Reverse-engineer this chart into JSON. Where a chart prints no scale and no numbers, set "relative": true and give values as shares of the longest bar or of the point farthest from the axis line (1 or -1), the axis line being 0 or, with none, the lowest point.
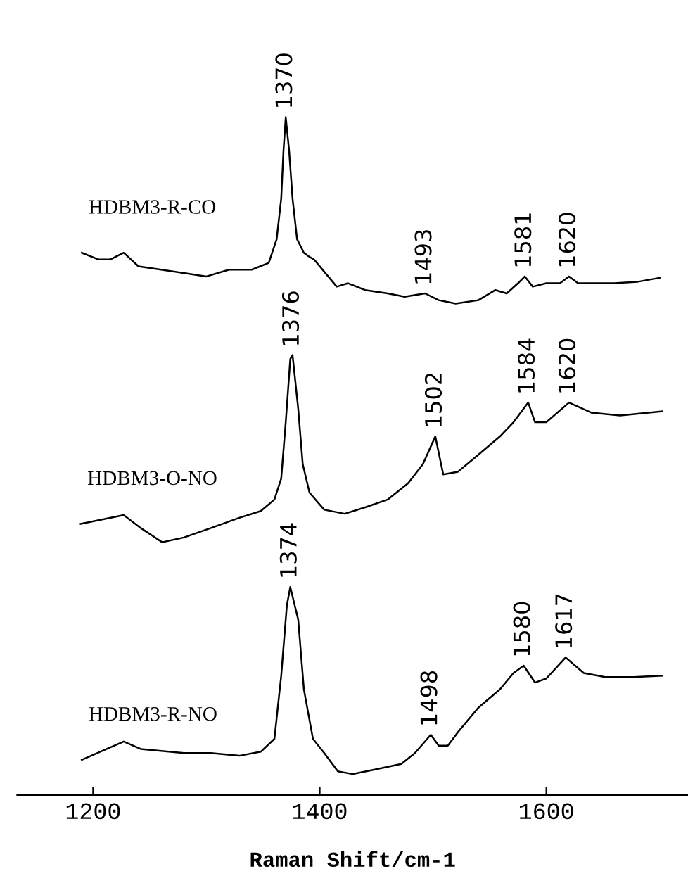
{
  "chart_data": {
    "type": "line",
    "relative": true,
    "xlabel": "Raman Shift/cm-1",
    "xlim": [
      1133,
      1725
    ],
    "xticks": [
      1200,
      1400,
      1600
    ],
    "tick_labels": "x",
    "series": [
      {
        "name": "HDBM3-R-CO",
        "color": "#000000",
        "x": [
          1190,
          1205,
          1215,
          1227,
          1240,
          1260,
          1280,
          1300,
          1320,
          1340,
          1355,
          1362,
          1366,
          1368,
          1370,
          1373,
          1376,
          1380,
          1386,
          1390,
          1395,
          1405,
          1415,
          1425,
          1440,
          1460,
          1475,
          1493,
          1505,
          1520,
          1540,
          1555,
          1565,
          1575,
          1581,
          1588,
          1600,
          1612,
          1620,
          1628,
          1640,
          1660,
          1680,
          1700
        ],
        "values": [
          0.8,
          0.79,
          0.79,
          0.8,
          0.78,
          0.775,
          0.77,
          0.765,
          0.775,
          0.775,
          0.785,
          0.82,
          0.88,
          0.95,
          1.0,
          0.95,
          0.88,
          0.82,
          0.8,
          0.795,
          0.79,
          0.77,
          0.75,
          0.755,
          0.745,
          0.74,
          0.735,
          0.74,
          0.73,
          0.725,
          0.73,
          0.745,
          0.74,
          0.755,
          0.765,
          0.75,
          0.755,
          0.755,
          0.765,
          0.755,
          0.755,
          0.755,
          0.757,
          0.763
        ]
      },
      {
        "name": "HDBM3-O-NO",
        "color": "#000000",
        "x": [
          1189,
          1227,
          1242,
          1261,
          1280,
          1304,
          1329,
          1348,
          1360,
          1366,
          1370,
          1374,
          1376,
          1381,
          1385,
          1391,
          1404,
          1422,
          1441,
          1460,
          1478,
          1491,
          1502,
          1509,
          1522,
          1540,
          1559,
          1571,
          1584,
          1590,
          1600,
          1620,
          1640,
          1665,
          1702
        ],
        "values": [
          0.4,
          0.413,
          0.394,
          0.373,
          0.38,
          0.394,
          0.409,
          0.419,
          0.436,
          0.467,
          0.55,
          0.643,
          0.649,
          0.57,
          0.488,
          0.446,
          0.421,
          0.415,
          0.425,
          0.436,
          0.46,
          0.488,
          0.529,
          0.473,
          0.477,
          0.502,
          0.529,
          0.55,
          0.579,
          0.55,
          0.55,
          0.579,
          0.564,
          0.56,
          0.566
        ]
      },
      {
        "name": "HDBM3-R-NO",
        "color": "#000000",
        "x": [
          1190,
          1227,
          1242,
          1280,
          1304,
          1329,
          1348,
          1360,
          1366,
          1371,
          1374,
          1381,
          1386,
          1394,
          1404,
          1416,
          1429,
          1447,
          1472,
          1484,
          1498,
          1505,
          1513,
          1522,
          1540,
          1559,
          1571,
          1580,
          1590,
          1600,
          1617,
          1633,
          1652,
          1677,
          1702
        ],
        "values": [
          0.052,
          0.079,
          0.068,
          0.062,
          0.062,
          0.058,
          0.064,
          0.083,
          0.176,
          0.28,
          0.307,
          0.259,
          0.156,
          0.083,
          0.062,
          0.035,
          0.031,
          0.037,
          0.046,
          0.062,
          0.089,
          0.073,
          0.073,
          0.093,
          0.129,
          0.156,
          0.18,
          0.191,
          0.166,
          0.172,
          0.203,
          0.18,
          0.174,
          0.174,
          0.176
        ]
      }
    ],
    "annotations": [
      {
        "text": "1370",
        "x": 1370,
        "y": 1.0
      },
      {
        "text": "1493",
        "x": 1493,
        "y": 0.74
      },
      {
        "text": "1581",
        "x": 1581,
        "y": 0.765
      },
      {
        "text": "1620",
        "x": 1620,
        "y": 0.765
      },
      {
        "text": "1376",
        "x": 1376,
        "y": 0.649
      },
      {
        "text": "1502",
        "x": 1502,
        "y": 0.529
      },
      {
        "text": "1584",
        "x": 1584,
        "y": 0.579
      },
      {
        "text": "1620",
        "x": 1620,
        "y": 0.579
      },
      {
        "text": "1374",
        "x": 1374,
        "y": 0.307
      },
      {
        "text": "1498",
        "x": 1498,
        "y": 0.089
      },
      {
        "text": "1580",
        "x": 1580,
        "y": 0.191
      },
      {
        "text": "1617",
        "x": 1617,
        "y": 0.203
      }
    ]
  }
}
